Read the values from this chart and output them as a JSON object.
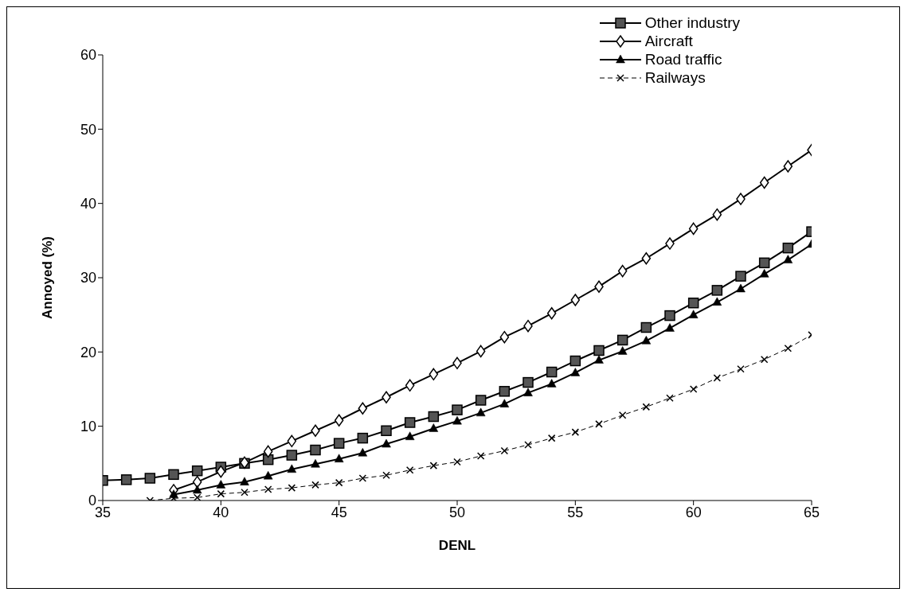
{
  "chart_data": {
    "type": "line",
    "xlabel": "DENL",
    "ylabel": "Annoyed (%)",
    "x": [
      35,
      36,
      37,
      38,
      39,
      40,
      41,
      42,
      43,
      44,
      45,
      46,
      47,
      48,
      49,
      50,
      51,
      52,
      53,
      54,
      55,
      56,
      57,
      58,
      59,
      60,
      61,
      62,
      63,
      64,
      65
    ],
    "series": [
      {
        "name": "Other industry",
        "color": "#000000",
        "marker": "square",
        "line_style": "solid",
        "values": [
          2.7,
          2.8,
          3.0,
          3.5,
          4.0,
          4.5,
          5.0,
          5.5,
          6.1,
          6.8,
          7.7,
          8.4,
          9.4,
          10.5,
          11.3,
          12.2,
          13.5,
          14.7,
          15.9,
          17.3,
          18.8,
          20.2,
          21.6,
          23.3,
          24.9,
          26.6,
          28.3,
          30.2,
          32.0,
          34.0,
          36.2
        ]
      },
      {
        "name": "Aircraft",
        "color": "#000000",
        "marker": "diamond",
        "line_style": "solid",
        "values": [
          null,
          null,
          null,
          1.4,
          2.5,
          3.9,
          5.1,
          6.6,
          8.0,
          9.4,
          10.8,
          12.4,
          13.9,
          15.5,
          17.0,
          18.5,
          20.1,
          22.0,
          23.5,
          25.2,
          27.0,
          28.8,
          30.9,
          32.6,
          34.6,
          36.6,
          38.5,
          40.6,
          42.8,
          45.0,
          47.2
        ]
      },
      {
        "name": "Road traffic",
        "color": "#000000",
        "marker": "triangle",
        "line_style": "solid",
        "values": [
          null,
          null,
          null,
          0.8,
          1.4,
          2.1,
          2.5,
          3.3,
          4.2,
          4.9,
          5.6,
          6.4,
          7.6,
          8.6,
          9.7,
          10.7,
          11.8,
          13.0,
          14.5,
          15.7,
          17.2,
          18.9,
          20.1,
          21.5,
          23.2,
          25.0,
          26.7,
          28.5,
          30.5,
          32.4,
          34.5
        ]
      },
      {
        "name": "Railways",
        "color": "#000000",
        "marker": "cross",
        "line_style": "dashed",
        "values": [
          null,
          null,
          0,
          0.3,
          0.4,
          0.9,
          1.1,
          1.5,
          1.7,
          2.1,
          2.4,
          3.0,
          3.4,
          4.1,
          4.7,
          5.2,
          6.0,
          6.7,
          7.5,
          8.4,
          9.2,
          10.3,
          11.5,
          12.6,
          13.8,
          15.0,
          16.5,
          17.7,
          19.0,
          20.5,
          22.3
        ]
      }
    ],
    "xlim": [
      35,
      65
    ],
    "xticks": [
      35,
      40,
      45,
      50,
      55,
      60,
      65
    ],
    "ylim": [
      0,
      60
    ],
    "yticks": [
      0,
      10,
      20,
      30,
      40,
      50,
      60
    ],
    "grid": false,
    "legend": "top right"
  }
}
